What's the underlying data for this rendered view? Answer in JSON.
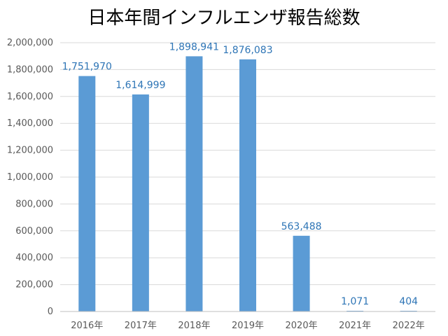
{
  "chart_data": {
    "type": "bar",
    "title": "日本年間インフルエンザ報告総数",
    "categories": [
      "2016年",
      "2017年",
      "2018年",
      "2019年",
      "2020年",
      "2021年",
      "2022年"
    ],
    "values": [
      1751970,
      1614999,
      1898941,
      1876083,
      563488,
      1071,
      404
    ],
    "data_labels": [
      "1,751,970",
      "1,614,999",
      "1,898,941",
      "1,876,083",
      "563,488",
      "1,071",
      "404"
    ],
    "y_ticks": [
      0,
      200000,
      400000,
      600000,
      800000,
      1000000,
      1200000,
      1400000,
      1600000,
      1800000,
      2000000
    ],
    "y_tick_labels": [
      "0",
      "200,000",
      "400,000",
      "600,000",
      "800,000",
      "1,000,000",
      "1,200,000",
      "1,400,000",
      "1,600,000",
      "1,800,000",
      "2,000,000"
    ],
    "ylim": [
      0,
      2000000
    ],
    "xlabel": "",
    "ylabel": "",
    "grid": true,
    "legend": "none",
    "bar_color": "#5b9bd5",
    "label_color": "#2e75b6"
  }
}
